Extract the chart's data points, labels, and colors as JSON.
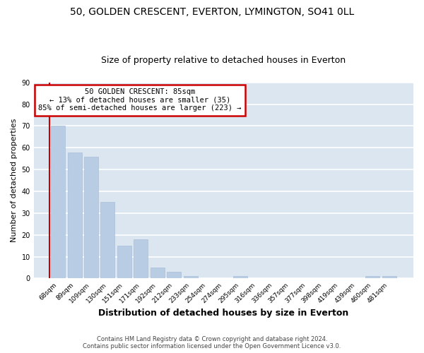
{
  "title1": "50, GOLDEN CRESCENT, EVERTON, LYMINGTON, SO41 0LL",
  "title2": "Size of property relative to detached houses in Everton",
  "xlabel": "Distribution of detached houses by size in Everton",
  "ylabel": "Number of detached properties",
  "categories": [
    "68sqm",
    "89sqm",
    "109sqm",
    "130sqm",
    "151sqm",
    "171sqm",
    "192sqm",
    "212sqm",
    "233sqm",
    "254sqm",
    "274sqm",
    "295sqm",
    "316sqm",
    "336sqm",
    "357sqm",
    "377sqm",
    "398sqm",
    "419sqm",
    "439sqm",
    "460sqm",
    "481sqm"
  ],
  "values": [
    70,
    58,
    56,
    35,
    15,
    18,
    5,
    3,
    1,
    0,
    0,
    1,
    0,
    0,
    0,
    0,
    0,
    0,
    0,
    1,
    1
  ],
  "bar_color": "#b8cce4",
  "bar_edge_color": "#aabfd8",
  "background_color": "#dce6f1",
  "plot_bg_color": "#dce6f1",
  "grid_color": "#ffffff",
  "annotation_box_text": "50 GOLDEN CRESCENT: 85sqm\n← 13% of detached houses are smaller (35)\n85% of semi-detached houses are larger (223) →",
  "annotation_box_color": "#ffffff",
  "annotation_box_edge_color": "#cc0000",
  "redline_color": "#cc0000",
  "ylim": [
    0,
    90
  ],
  "yticks": [
    0,
    10,
    20,
    30,
    40,
    50,
    60,
    70,
    80,
    90
  ],
  "footer1": "Contains HM Land Registry data © Crown copyright and database right 2024.",
  "footer2": "Contains public sector information licensed under the Open Government Licence v3.0.",
  "title_fontsize": 10,
  "subtitle_fontsize": 9,
  "tick_fontsize": 6.5,
  "ylabel_fontsize": 8,
  "xlabel_fontsize": 9,
  "annotation_fontsize": 7.5,
  "footer_fontsize": 6
}
